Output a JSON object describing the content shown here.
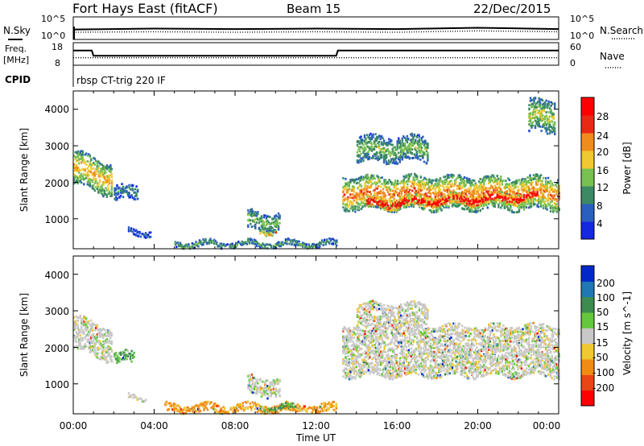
{
  "header": {
    "station": "Fort Hays East (fitACF)",
    "beam": "Beam 15",
    "date": "22/Dec/2015"
  },
  "noise_panel": {
    "left_label": "N.Sky",
    "right_label": "N.Search",
    "left_ticks": [
      "10^5",
      "10^0"
    ],
    "right_ticks": [
      "10^5",
      "10^0"
    ]
  },
  "freq_panel": {
    "left_label_line1": "Freq.",
    "left_label_line2": "[MHz]",
    "right_label": "Nave",
    "left_ticks": [
      "18",
      "8"
    ],
    "right_ticks": [
      "60",
      "0"
    ],
    "cpid_label": "CPID",
    "cpid_text": "rbsp CT-trig 220 IF"
  },
  "x_axis": {
    "label": "Time UT",
    "ticks": [
      "00:00",
      "04:00",
      "08:00",
      "12:00",
      "16:00",
      "20:00",
      "00:00"
    ]
  },
  "power_panel": {
    "ylabel": "Slant Range [km]",
    "yticks": [
      "4000",
      "3000",
      "2000",
      "1000"
    ],
    "colorbar_label": "Power [dB]",
    "colorbar_ticks": [
      "28",
      "24",
      "20",
      "16",
      "12",
      "8",
      "4"
    ],
    "colors": [
      "#1428e0",
      "#2a5fbe",
      "#3c8a64",
      "#78c050",
      "#f0c832",
      "#f08c1e",
      "#e82a14",
      "#ff0000"
    ]
  },
  "velocity_panel": {
    "ylabel": "Slant Range [km]",
    "yticks": [
      "4000",
      "3000",
      "2000",
      "1000"
    ],
    "colorbar_label": "Velocity [m s^-1]",
    "colorbar_ticks": [
      "200",
      "100",
      "50",
      "15",
      "-15",
      "-50",
      "-100",
      "-200"
    ],
    "colors": [
      "#0028c8",
      "#1e78b4",
      "#3c8c50",
      "#64c83c",
      "#c8c8c8",
      "#f0c832",
      "#f08c14",
      "#e84614",
      "#ff0000"
    ]
  },
  "chart_data": [
    {
      "type": "line",
      "title": "Fort Hays East (fitACF)",
      "x": [
        "00:00",
        "04:00",
        "08:00",
        "12:00",
        "16:00",
        "20:00",
        "24:00"
      ],
      "series": [
        {
          "name": "N.Sky",
          "values": [
            2.2,
            2.4,
            2.3,
            2.4,
            2.3,
            2.6,
            2.3
          ]
        },
        {
          "name": "N.Search",
          "values": [
            1.6,
            1.7,
            1.6,
            1.7,
            1.6,
            1.9,
            1.7
          ]
        }
      ],
      "ylim": [
        0,
        5
      ],
      "ylabel": "",
      "xlabel": ""
    },
    {
      "type": "line",
      "x": [
        "00:00",
        "00:55",
        "01:00",
        "13:00",
        "13:05",
        "24:00"
      ],
      "series": [
        {
          "name": "Freq. [MHz]",
          "values": [
            14.5,
            14.5,
            12.2,
            12.2,
            14.5,
            14.5
          ]
        },
        {
          "name": "Nave",
          "values": [
            20,
            20,
            20,
            20,
            20,
            20
          ]
        }
      ],
      "ylim": [
        8,
        18
      ]
    },
    {
      "type": "heatmap",
      "ylabel": "Slant Range [km]",
      "xlabel": "",
      "ylim": [
        180,
        4500
      ],
      "xlim_hours": [
        0,
        24
      ],
      "colorbar": {
        "label": "Power [dB]",
        "range": [
          0,
          32
        ]
      },
      "regions": [
        {
          "t": [
            0.0,
            1.9
          ],
          "r_center": [
            2400,
            2050
          ],
          "thickness": 900,
          "value": 18
        },
        {
          "t": [
            2.0,
            3.2
          ],
          "r_center": [
            1700,
            1700
          ],
          "thickness": 400,
          "value": 8
        },
        {
          "t": [
            2.7,
            3.8
          ],
          "r_center": [
            620,
            620
          ],
          "thickness": 160,
          "value": 6
        },
        {
          "t": [
            8.6,
            10.2
          ],
          "r_center": [
            950,
            900
          ],
          "thickness": 500,
          "value": 12
        },
        {
          "t": [
            9.2,
            10.0
          ],
          "r_center": [
            650,
            650
          ],
          "thickness": 120,
          "value": 22
        },
        {
          "t": [
            5.0,
            13.0
          ],
          "r_center": [
            300,
            300
          ],
          "thickness": 160,
          "value": 10
        },
        {
          "t": [
            13.3,
            24.0
          ],
          "r_center": [
            1700,
            1700
          ],
          "thickness": 900,
          "value": 20
        },
        {
          "t": [
            14.5,
            23.0
          ],
          "r_center": [
            1400,
            1600
          ],
          "thickness": 300,
          "value": 30
        },
        {
          "t": [
            14.0,
            17.5
          ],
          "r_center": [
            2900,
            2900
          ],
          "thickness": 700,
          "value": 12
        },
        {
          "t": [
            22.5,
            23.8
          ],
          "r_center": [
            3800,
            3800
          ],
          "thickness": 900,
          "value": 14
        }
      ]
    },
    {
      "type": "heatmap",
      "ylabel": "Slant Range [km]",
      "xlabel": "Time UT",
      "ylim": [
        180,
        4500
      ],
      "xlim_hours": [
        0,
        24
      ],
      "colorbar": {
        "label": "Velocity [m s^-1]",
        "range": [
          -250,
          250
        ]
      },
      "regions": [
        {
          "t": [
            0.0,
            1.9
          ],
          "r_center": [
            2400,
            2050
          ],
          "thickness": 900,
          "value": 0
        },
        {
          "t": [
            2.0,
            3.0
          ],
          "r_center": [
            1700,
            1700
          ],
          "thickness": 300,
          "value": 30
        },
        {
          "t": [
            2.7,
            3.6
          ],
          "r_center": [
            620,
            620
          ],
          "thickness": 120,
          "value": 0
        },
        {
          "t": [
            8.6,
            10.2
          ],
          "r_center": [
            950,
            900
          ],
          "thickness": 500,
          "value": 0
        },
        {
          "t": [
            4.5,
            13.0
          ],
          "r_center": [
            320,
            320
          ],
          "thickness": 240,
          "value": -40
        },
        {
          "t": [
            9.2,
            11.0
          ],
          "r_center": [
            350,
            350
          ],
          "thickness": 120,
          "value": 30
        },
        {
          "t": [
            13.3,
            24.0
          ],
          "r_center": [
            1900,
            1900
          ],
          "thickness": 1400,
          "value": 0
        },
        {
          "t": [
            14.0,
            17.5
          ],
          "r_center": [
            2900,
            2900
          ],
          "thickness": 600,
          "value": 0
        }
      ]
    }
  ]
}
